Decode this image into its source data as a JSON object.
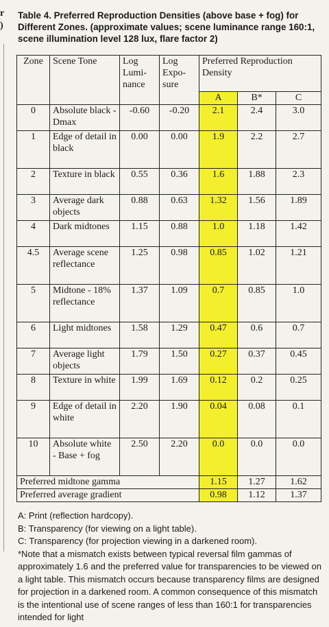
{
  "margin_fragments": [
    "r",
    ")"
  ],
  "caption": "Table 4. Preferred Reproduction Densities (above base + fog) for Different Zones. (approximate values; scene luminance range 160:1, scene illumination level 128 lux, flare factor 2)",
  "headers": {
    "zone": "Zone",
    "scene_tone": "Scene Tone",
    "log_luminance": "Log Lumi-nance",
    "log_exposure": "Log Expo-sure",
    "preferred": "Preferred Reproduction Density",
    "a": "A",
    "b": "B*",
    "c": "C"
  },
  "rows": [
    {
      "zone": "0",
      "tone": "Absolute black - Dmax",
      "lum": "-0.60",
      "exp": "-0.20",
      "a": "2.1",
      "b": "2.4",
      "c": "3.0"
    },
    {
      "zone": "1",
      "tone": "Edge of detail in black",
      "lum": "0.00",
      "exp": "0.00",
      "a": "1.9",
      "b": "2.2",
      "c": "2.7"
    },
    {
      "zone": "2",
      "tone": "Texture in black",
      "lum": "0.55",
      "exp": "0.36",
      "a": "1.6",
      "b": "1.88",
      "c": "2.3"
    },
    {
      "zone": "3",
      "tone": "Average dark objects",
      "lum": "0.88",
      "exp": "0.63",
      "a": "1.32",
      "b": "1.56",
      "c": "1.89"
    },
    {
      "zone": "4",
      "tone": "Dark midtones",
      "lum": "1.15",
      "exp": "0.88",
      "a": "1.0",
      "b": "1.18",
      "c": "1.42"
    },
    {
      "zone": "4.5",
      "tone": "Average scene reflectance",
      "lum": "1.25",
      "exp": "0.98",
      "a": "0.85",
      "b": "1.02",
      "c": "1.21"
    },
    {
      "zone": "5",
      "tone": "Midtone - 18% reflectance",
      "lum": "1.37",
      "exp": "1.09",
      "a": "0.7",
      "b": "0.85",
      "c": "1.0"
    },
    {
      "zone": "6",
      "tone": "Light midtones",
      "lum": "1.58",
      "exp": "1.29",
      "a": "0.47",
      "b": "0.6",
      "c": "0.7"
    },
    {
      "zone": "7",
      "tone": "Average light objects",
      "lum": "1.79",
      "exp": "1.50",
      "a": "0.27",
      "b": "0.37",
      "c": "0.45"
    },
    {
      "zone": "8",
      "tone": "Texture in white",
      "lum": "1.99",
      "exp": "1.69",
      "a": "0.12",
      "b": "0.2",
      "c": "0.25"
    },
    {
      "zone": "9",
      "tone": "Edge of detail in white",
      "lum": "2.20",
      "exp": "1.90",
      "a": "0.04",
      "b": "0.08",
      "c": "0.1"
    },
    {
      "zone": "10",
      "tone": "Absolute white - Base + fog",
      "lum": "2.50",
      "exp": "2.20",
      "a": "0.0",
      "b": "0.0",
      "c": "0.0"
    }
  ],
  "summary_rows": [
    {
      "label": "Preferred midtone gamma",
      "a": "1.15",
      "b": "1.27",
      "c": "1.62"
    },
    {
      "label": "Preferred average gradient",
      "a": "0.98",
      "b": "1.12",
      "c": "1.37"
    }
  ],
  "notes": [
    "A: Print (reflection hardcopy).",
    "B: Transparency (for viewing on a light table).",
    "C: Transparency (for projection viewing in a darkened room).",
    "*Note that a mismatch exists between typical reversal film gammas of approximately 1.6 and the preferred value for transparencies to be viewed on a light table. This mismatch occurs because transparency films are designed for projection in a darkened room. A common consequence of this mismatch is the intentional use of scene ranges of less than 160:1 for transparencies intended for light"
  ],
  "highlight_color": "#f3ef2c"
}
